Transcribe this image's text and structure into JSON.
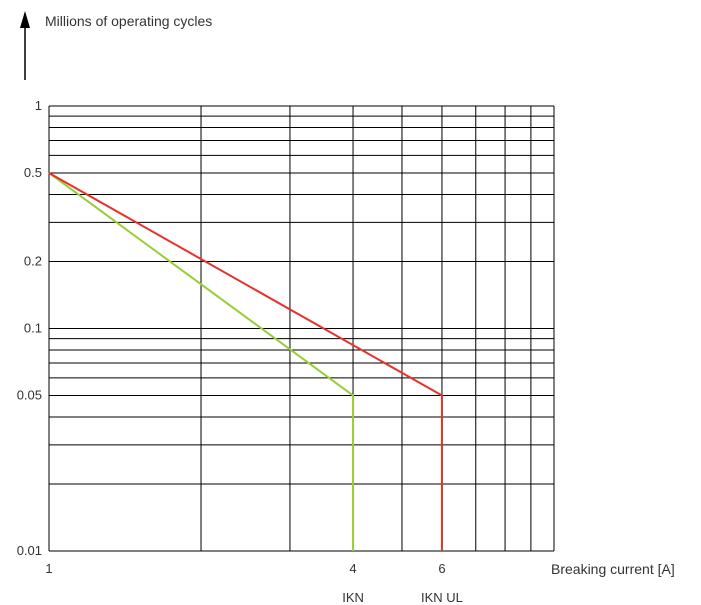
{
  "chart_data": {
    "type": "line",
    "y_label": "Millions of operating cycles",
    "x_label": "Breaking current [A]",
    "x_scale": "log",
    "y_scale": "log",
    "xlim": [
      1,
      10
    ],
    "ylim": [
      0.01,
      1
    ],
    "grid": true,
    "x_ticks": [
      {
        "value": 1,
        "label": "1"
      },
      {
        "value": 4,
        "label": "4"
      },
      {
        "value": 6,
        "label": "6"
      }
    ],
    "y_ticks": [
      {
        "value": 1,
        "label": "1"
      },
      {
        "value": 0.5,
        "label": "0.5"
      },
      {
        "value": 0.2,
        "label": "0.2"
      },
      {
        "value": 0.1,
        "label": "0.1"
      },
      {
        "value": 0.05,
        "label": "0.05"
      },
      {
        "value": 0.01,
        "label": "0.01"
      }
    ],
    "current_markers": [
      {
        "value": 4,
        "label": "IKN",
        "color": "#9acd32"
      },
      {
        "value": 6,
        "label": "IKN UL",
        "color": "#e8312a"
      }
    ],
    "series": [
      {
        "color": "#9acd32",
        "points": [
          [
            1,
            0.5
          ],
          [
            4,
            0.05
          ],
          [
            4,
            0.01
          ]
        ]
      },
      {
        "color": "#e8312a",
        "points": [
          [
            1,
            0.5
          ],
          [
            6,
            0.05
          ],
          [
            6,
            0.01
          ]
        ]
      }
    ]
  }
}
